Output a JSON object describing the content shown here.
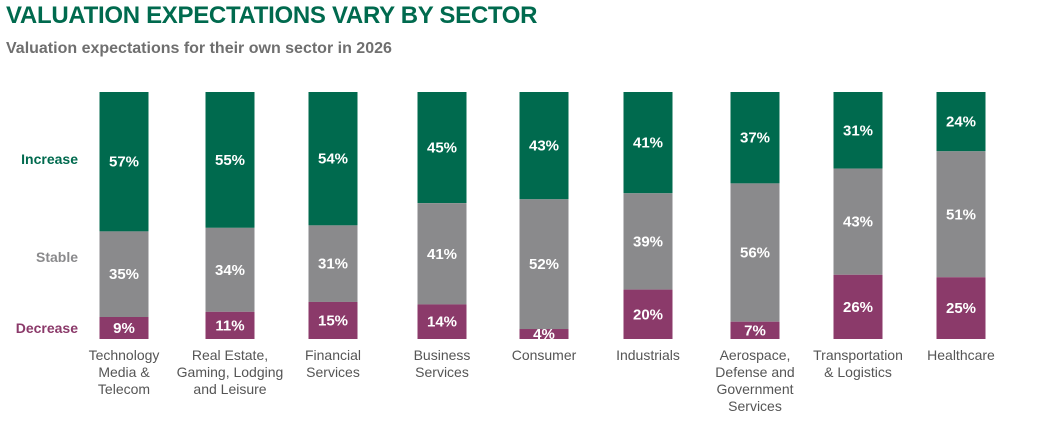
{
  "title": "VALUATION EXPECTATIONS VARY BY SECTOR",
  "subtitle": "Valuation expectations for their own sector in 2026",
  "colors": {
    "increase": "#006a4e",
    "stable": "#8a8a8c",
    "decrease": "#8b3a6a",
    "title": "#006a4e",
    "subtitle": "#6f6f6f"
  },
  "chart_data": {
    "type": "bar",
    "stacked": true,
    "percent_stacked": true,
    "title": "VALUATION EXPECTATIONS VARY BY SECTOR",
    "subtitle": "Valuation expectations for their own sector in 2026",
    "categories": [
      "Technology Media & Telecom",
      "Real Estate, Gaming, Lodging and Leisure",
      "Financial Services",
      "Business Services",
      "Consumer",
      "Industrials",
      "Aerospace, Defense and Government Services",
      "Transportation & Logistics",
      "Healthcare"
    ],
    "category_lines": [
      [
        "Technology",
        "Media &",
        "Telecom"
      ],
      [
        "Real Estate,",
        "Gaming, Lodging",
        "and Leisure"
      ],
      [
        "Financial",
        "Services"
      ],
      [
        "Business",
        "Services"
      ],
      [
        "Consumer"
      ],
      [
        "Industrials"
      ],
      [
        "Aerospace,",
        "Defense and",
        "Government",
        "Services"
      ],
      [
        "Transportation",
        "& Logistics"
      ],
      [
        "Healthcare"
      ]
    ],
    "series": [
      {
        "name": "Increase",
        "values": [
          57,
          55,
          54,
          45,
          43,
          41,
          37,
          31,
          24
        ]
      },
      {
        "name": "Stable",
        "values": [
          35,
          34,
          31,
          41,
          52,
          39,
          56,
          43,
          51
        ]
      },
      {
        "name": "Decrease",
        "values": [
          9,
          11,
          15,
          14,
          4,
          20,
          7,
          26,
          25
        ]
      }
    ],
    "value_labels": [
      [
        "57%",
        "55%",
        "54%",
        "45%",
        "43%",
        "41%",
        "37%",
        "31%",
        "24%"
      ],
      [
        "35%",
        "34%",
        "31%",
        "41%",
        "52%",
        "39%",
        "56%",
        "43%",
        "51%"
      ],
      [
        "9%",
        "11%",
        "15%",
        "14%",
        "4%",
        "20%",
        "7%",
        "26%",
        "25%"
      ]
    ],
    "ylim": [
      0,
      100
    ],
    "legend": "left-row-labels",
    "grid": false
  }
}
